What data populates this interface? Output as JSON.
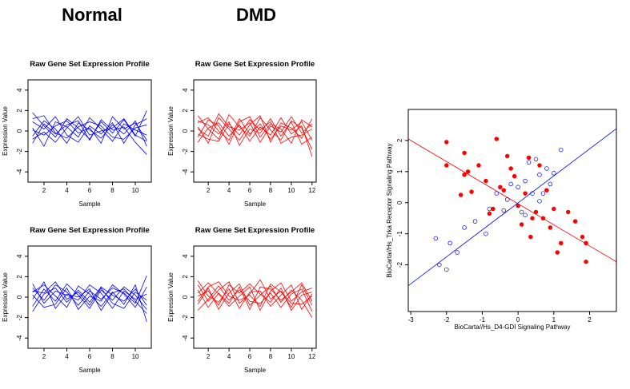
{
  "headers": [
    "Normal",
    "DMD"
  ],
  "chart_data": [
    {
      "type": "line",
      "title": "Raw Gene Set Expression Profile",
      "x_label": "Sample",
      "y_label": "Expression Value",
      "color": "blue",
      "x": [
        1,
        2,
        3,
        4,
        5,
        6,
        7,
        8,
        9,
        10,
        11
      ],
      "xlim": [
        0.6,
        11.4
      ],
      "xticks": [
        2,
        4,
        6,
        8,
        10
      ],
      "ylim": [
        -5,
        5
      ],
      "yticks": [
        -4,
        -2,
        0,
        2,
        4
      ],
      "series": [
        {
          "values": [
            1.8,
            0.5,
            -0.6,
            1.2,
            0.3,
            -0.8,
            0.9,
            -0.2,
            1.1,
            -0.5,
            2.0
          ]
        },
        {
          "values": [
            -0.5,
            1.0,
            0.2,
            -1.2,
            0.8,
            0.1,
            -0.7,
            0.6,
            -0.3,
            1.0,
            -1.5
          ]
        },
        {
          "values": [
            0.3,
            -1.5,
            0.9,
            0.4,
            -0.6,
            1.3,
            0.2,
            -1.0,
            0.7,
            0.1,
            -0.4
          ]
        },
        {
          "values": [
            0.9,
            0.2,
            1.4,
            -0.4,
            -1.1,
            0.5,
            -0.3,
            0.8,
            -1.2,
            0.6,
            1.2
          ]
        },
        {
          "values": [
            -1.2,
            0.7,
            -0.3,
            0.6,
            1.0,
            -0.9,
            1.1,
            0.1,
            0.4,
            -1.1,
            -2.3
          ]
        },
        {
          "values": [
            0.1,
            -0.4,
            0.5,
            1.0,
            -0.2,
            0.3,
            -1.2,
            1.4,
            0.2,
            0.8,
            -0.9
          ]
        },
        {
          "values": [
            1.2,
            1.5,
            -0.2,
            -0.7,
            0.4,
            0.9,
            0.5,
            -0.6,
            -0.8,
            0.3,
            0.6
          ]
        },
        {
          "values": [
            -0.8,
            -0.1,
            -1.1,
            0.3,
            1.4,
            -0.4,
            0.0,
            0.3,
            1.2,
            -0.4,
            -1.0
          ]
        }
      ]
    },
    {
      "type": "line",
      "title": "Raw Gene Set Expression Profile",
      "x_label": "Sample",
      "y_label": "Expression Value",
      "color": "red",
      "x": [
        1,
        2,
        3,
        4,
        5,
        6,
        7,
        8,
        9,
        10,
        11,
        12
      ],
      "xlim": [
        0.6,
        12.4
      ],
      "xticks": [
        2,
        4,
        6,
        8,
        10,
        12
      ],
      "ylim": [
        -5,
        5
      ],
      "yticks": [
        -4,
        -2,
        0,
        2,
        4
      ],
      "series": [
        {
          "values": [
            1.5,
            0.2,
            -0.8,
            1.6,
            0.4,
            -0.5,
            1.3,
            0.1,
            -0.9,
            1.0,
            0.3,
            -1.8
          ]
        },
        {
          "values": [
            -0.6,
            1.1,
            0.5,
            -1.3,
            0.9,
            1.4,
            -0.6,
            0.7,
            0.2,
            -1.2,
            1.1,
            0.4
          ]
        },
        {
          "values": [
            0.4,
            -1.2,
            1.3,
            0.2,
            -0.9,
            0.6,
            1.5,
            -1.1,
            0.8,
            0.3,
            -0.7,
            1.2
          ]
        },
        {
          "values": [
            1.0,
            0.6,
            -0.3,
            0.9,
            -1.4,
            0.2,
            -0.2,
            1.2,
            -0.5,
            0.9,
            -1.3,
            -0.6
          ]
        },
        {
          "values": [
            -1.1,
            0.3,
            0.8,
            -0.5,
            0.6,
            -1.0,
            0.4,
            -0.4,
            1.3,
            -0.3,
            0.5,
            -2.5
          ]
        },
        {
          "values": [
            0.2,
            -0.5,
            1.7,
            0.4,
            0.1,
            0.8,
            -1.1,
            0.5,
            -0.1,
            1.4,
            -0.2,
            0.7
          ]
        },
        {
          "values": [
            0.8,
            1.3,
            0.0,
            -0.9,
            1.2,
            -0.3,
            0.7,
            -0.8,
            0.5,
            0.1,
            0.9,
            -0.9
          ]
        },
        {
          "values": [
            -0.3,
            -0.8,
            -1.0,
            0.7,
            -0.4,
            1.1,
            0.1,
            0.9,
            -1.2,
            -0.6,
            -0.4,
            0.2
          ]
        }
      ]
    },
    {
      "type": "line",
      "title": "Raw Gene Set Expression Profile",
      "x_label": "Sample",
      "y_label": "Expression Value",
      "color": "blue",
      "x": [
        1,
        2,
        3,
        4,
        5,
        6,
        7,
        8,
        9,
        10,
        11
      ],
      "xlim": [
        0.6,
        11.4
      ],
      "xticks": [
        2,
        4,
        6,
        8,
        10
      ],
      "ylim": [
        -5,
        5
      ],
      "yticks": [
        -4,
        -2,
        0,
        2,
        4
      ],
      "series": [
        {
          "values": [
            0.9,
            -0.3,
            1.2,
            0.5,
            -0.8,
            0.6,
            -0.2,
            0.9,
            0.4,
            -0.6,
            2.1
          ]
        },
        {
          "values": [
            -0.9,
            0.8,
            -0.4,
            1.3,
            0.2,
            -1.1,
            0.7,
            -0.3,
            1.0,
            0.2,
            -1.2
          ]
        },
        {
          "values": [
            0.5,
            1.2,
            0.1,
            -1.0,
            1.1,
            0.3,
            -0.9,
            0.5,
            -0.7,
            1.2,
            -2.4
          ]
        },
        {
          "values": [
            1.3,
            -0.6,
            0.6,
            0.2,
            -0.3,
            1.2,
            0.4,
            -1.1,
            0.6,
            -0.2,
            0.3
          ]
        },
        {
          "values": [
            -1.4,
            0.3,
            0.9,
            -0.5,
            0.7,
            -0.5,
            1.0,
            0.2,
            -0.4,
            0.8,
            -0.8
          ]
        },
        {
          "values": [
            0.2,
            -1.0,
            -0.7,
            0.9,
            -1.2,
            0.1,
            -0.4,
            1.2,
            0.3,
            -1.0,
            1.0
          ]
        },
        {
          "values": [
            0.6,
            0.4,
            1.5,
            -0.2,
            0.5,
            -0.8,
            0.9,
            -0.6,
            -1.1,
            0.5,
            -0.3
          ]
        },
        {
          "values": [
            -0.2,
            1.5,
            -1.1,
            0.3,
            0.0,
            0.8,
            -1.3,
            0.4,
            0.8,
            -0.4,
            -1.6
          ]
        }
      ]
    },
    {
      "type": "line",
      "title": "Raw Gene Set Expression Profile",
      "x_label": "Sample",
      "y_label": "Expression Value",
      "color": "red",
      "x": [
        1,
        2,
        3,
        4,
        5,
        6,
        7,
        8,
        9,
        10,
        11,
        12
      ],
      "xlim": [
        0.6,
        12.4
      ],
      "xticks": [
        2,
        4,
        6,
        8,
        10,
        12
      ],
      "ylim": [
        -5,
        5
      ],
      "yticks": [
        -4,
        -2,
        0,
        2,
        4
      ],
      "series": [
        {
          "values": [
            1.2,
            -0.4,
            0.7,
            1.5,
            -0.6,
            0.3,
            1.7,
            -0.2,
            0.6,
            -1.0,
            1.2,
            -0.8
          ]
        },
        {
          "values": [
            -0.7,
            0.9,
            -1.2,
            0.4,
            1.3,
            -0.8,
            0.2,
            1.1,
            -0.5,
            0.7,
            -0.3,
            -2.0
          ]
        },
        {
          "values": [
            0.4,
            1.4,
            0.3,
            -0.9,
            0.1,
            1.0,
            -1.3,
            0.6,
            1.4,
            -0.4,
            0.5,
            0.9
          ]
        },
        {
          "values": [
            1.6,
            0.1,
            -0.5,
            0.8,
            -1.1,
            0.5,
            0.6,
            -0.9,
            0.2,
            1.2,
            -1.2,
            0.3
          ]
        },
        {
          "values": [
            -1.3,
            -0.2,
            1.1,
            -0.3,
            0.7,
            -0.4,
            -0.6,
            0.4,
            -1.0,
            0.3,
            0.8,
            -1.4
          ]
        },
        {
          "values": [
            0.1,
            0.6,
            -0.8,
            1.2,
            0.4,
            1.3,
            0.3,
            -0.5,
            0.9,
            -1.3,
            0.2,
            0.5
          ]
        },
        {
          "values": [
            0.7,
            -1.0,
            0.4,
            -0.6,
            1.0,
            -1.2,
            1.0,
            0.8,
            -0.3,
            0.5,
            1.4,
            -0.4
          ]
        },
        {
          "values": [
            -0.4,
            1.0,
            1.5,
            0.1,
            -0.3,
            0.2,
            -0.9,
            1.3,
            0.5,
            -0.6,
            -0.7,
            0.1
          ]
        }
      ]
    },
    {
      "type": "scatter",
      "x_label": "BioCarta//Hs_D4-GDI Signaling Pathway",
      "y_label": "BioCarta//Hs_Trka Receptor Signaling Pathway",
      "xlim": [
        -3.07,
        2.75
      ],
      "xticks": [
        -3,
        -2,
        -1,
        0,
        1,
        2
      ],
      "ylim": [
        -3.5,
        3
      ],
      "yticks": [
        -2,
        -1,
        0,
        1,
        2
      ],
      "series": [
        {
          "color": "red",
          "filled": true,
          "x": [
            -2,
            -2,
            -1.5,
            -1.4,
            -1.5,
            -1.3,
            -1.1,
            -0.9,
            -0.7,
            -0.6,
            -0.5,
            -0.4,
            -0.3,
            -0.2,
            -0.1,
            0,
            0.1,
            0.2,
            0.3,
            0.35,
            0.5,
            0.6,
            0.7,
            0.8,
            0.9,
            1.0,
            1.1,
            1.2,
            1.4,
            1.6,
            1.8,
            1.9,
            1.9,
            -1.6,
            -0.8,
            0.4
          ],
          "y": [
            1.95,
            1.2,
            1.6,
            1.0,
            0.9,
            0.35,
            1.2,
            0.7,
            -0.2,
            2.05,
            0.5,
            0.4,
            1.5,
            1.1,
            0.85,
            -0.1,
            -0.7,
            0.3,
            1.45,
            -1.1,
            -0.3,
            1.2,
            -0.5,
            0.4,
            -0.8,
            -0.2,
            -1.6,
            -1.3,
            -0.3,
            -0.6,
            -1.1,
            -1.9,
            -1.3,
            0.25,
            -0.35,
            -0.5
          ]
        },
        {
          "color": "blue",
          "filled": false,
          "x": [
            -2.3,
            -2.2,
            -2.0,
            -1.9,
            -1.7,
            -1.5,
            -1.2,
            -0.8,
            -0.6,
            -0.4,
            -0.3,
            -0.2,
            0,
            0.1,
            0.2,
            0.3,
            0.4,
            0.5,
            0.6,
            0.7,
            0.8,
            0.9,
            1.0,
            1.2,
            0.2,
            -0.9,
            0.6
          ],
          "y": [
            -1.15,
            -2.0,
            -2.15,
            -1.3,
            -1.6,
            -0.8,
            -0.6,
            -0.2,
            0.3,
            -0.25,
            0.1,
            0.6,
            0.5,
            -0.3,
            0.7,
            1.3,
            0.3,
            1.4,
            0.9,
            0.3,
            1.1,
            0.6,
            0.95,
            1.7,
            -0.4,
            -1.0,
            0.05
          ]
        }
      ],
      "fit_lines": [
        {
          "color": "red",
          "x": [
            -3.07,
            2.75
          ],
          "y": [
            2.05,
            -1.9
          ]
        },
        {
          "color": "blue",
          "x": [
            -3.07,
            2.75
          ],
          "y": [
            -2.67,
            2.38
          ]
        }
      ]
    }
  ]
}
